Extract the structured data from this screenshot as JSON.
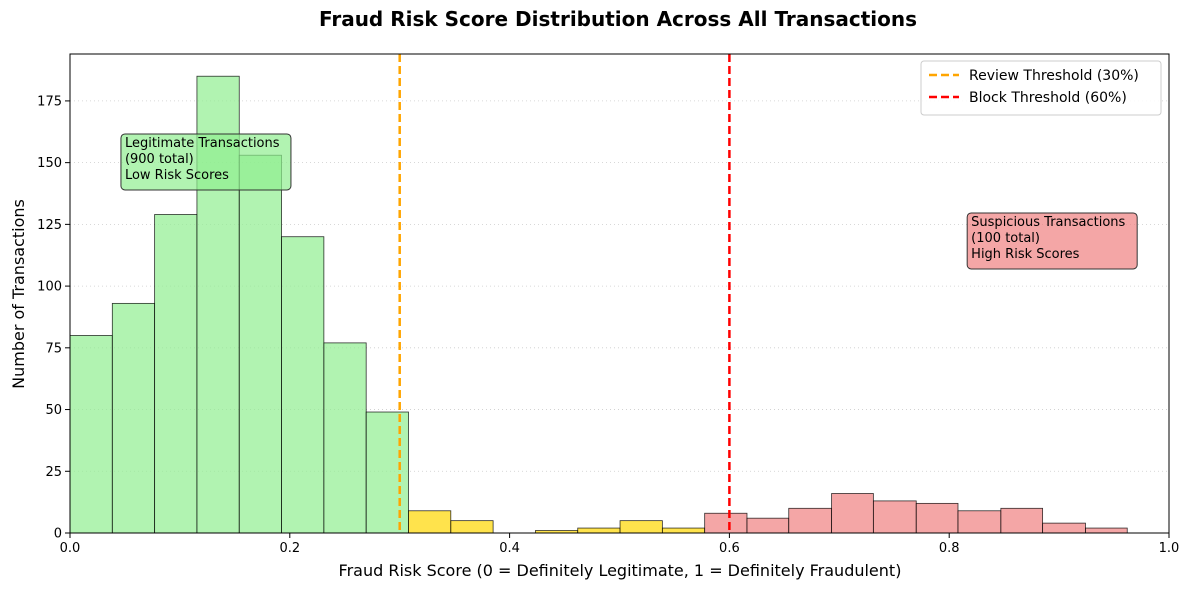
{
  "chart_data": {
    "type": "bar",
    "title": "Fraud Risk Score Distribution Across All Transactions",
    "xlabel": "Fraud Risk Score (0 = Definitely Legitimate, 1 = Definitely Fraudulent)",
    "ylabel": "Number of Transactions",
    "xlim": [
      0,
      1
    ],
    "ylim": [
      0,
      194
    ],
    "x_ticks": [
      "0.0",
      "0.2",
      "0.4",
      "0.6",
      "0.8",
      "1.0"
    ],
    "y_ticks": [
      "0",
      "25",
      "50",
      "75",
      "100",
      "125",
      "150",
      "175"
    ],
    "grid": "horizontal dotted",
    "legend_position": "top-right",
    "thresholds": [
      {
        "label": "Review Threshold (30%)",
        "x": 0.3,
        "color": "#ffa500"
      },
      {
        "label": "Block Threshold (60%)",
        "x": 0.6,
        "color": "#ff0000"
      }
    ],
    "bins": [
      {
        "start": 0.0,
        "end": 0.0385,
        "value": 80,
        "group": "legitimate"
      },
      {
        "start": 0.0385,
        "end": 0.077,
        "value": 93,
        "group": "legitimate"
      },
      {
        "start": 0.077,
        "end": 0.1155,
        "value": 129,
        "group": "legitimate"
      },
      {
        "start": 0.1155,
        "end": 0.154,
        "value": 185,
        "group": "legitimate"
      },
      {
        "start": 0.154,
        "end": 0.1925,
        "value": 153,
        "group": "legitimate"
      },
      {
        "start": 0.1925,
        "end": 0.231,
        "value": 120,
        "group": "legitimate"
      },
      {
        "start": 0.231,
        "end": 0.2695,
        "value": 77,
        "group": "legitimate"
      },
      {
        "start": 0.2695,
        "end": 0.308,
        "value": 49,
        "group": "legitimate"
      },
      {
        "start": 0.308,
        "end": 0.3465,
        "value": 9,
        "group": "review"
      },
      {
        "start": 0.3465,
        "end": 0.385,
        "value": 5,
        "group": "review"
      },
      {
        "start": 0.385,
        "end": 0.4235,
        "value": 0,
        "group": "review"
      },
      {
        "start": 0.4235,
        "end": 0.462,
        "value": 1,
        "group": "review"
      },
      {
        "start": 0.462,
        "end": 0.5005,
        "value": 2,
        "group": "review"
      },
      {
        "start": 0.5005,
        "end": 0.539,
        "value": 5,
        "group": "review"
      },
      {
        "start": 0.539,
        "end": 0.5775,
        "value": 2,
        "group": "review"
      },
      {
        "start": 0.5775,
        "end": 0.616,
        "value": 8,
        "group": "block"
      },
      {
        "start": 0.616,
        "end": 0.654,
        "value": 6,
        "group": "block"
      },
      {
        "start": 0.654,
        "end": 0.693,
        "value": 10,
        "group": "block"
      },
      {
        "start": 0.693,
        "end": 0.731,
        "value": 16,
        "group": "block"
      },
      {
        "start": 0.731,
        "end": 0.77,
        "value": 13,
        "group": "block"
      },
      {
        "start": 0.77,
        "end": 0.808,
        "value": 12,
        "group": "block"
      },
      {
        "start": 0.808,
        "end": 0.847,
        "value": 9,
        "group": "block"
      },
      {
        "start": 0.847,
        "end": 0.885,
        "value": 10,
        "group": "block"
      },
      {
        "start": 0.885,
        "end": 0.924,
        "value": 4,
        "group": "block"
      },
      {
        "start": 0.924,
        "end": 0.962,
        "value": 2,
        "group": "block"
      }
    ],
    "colors": {
      "legitimate": "#90ee90",
      "review": "#ffd700",
      "block": "#f08080"
    },
    "annotations": [
      {
        "lines": [
          "Legitimate Transactions",
          "(900 total)",
          "Low Risk Scores"
        ],
        "x": 0.05,
        "y": 160,
        "color": "#90ee90"
      },
      {
        "lines": [
          "Suspicious Transactions",
          "(100 total)",
          "High Risk Scores"
        ],
        "x": 0.82,
        "y": 128,
        "color": "#f08080"
      }
    ]
  }
}
